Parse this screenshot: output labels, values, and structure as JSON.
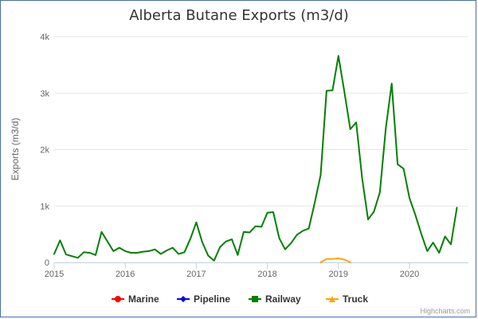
{
  "chart_data": {
    "type": "line",
    "title": "Alberta Butane Exports (m3/d)",
    "xlabel": "",
    "ylabel": "Exports (m3/d)",
    "xlim": [
      2015.0,
      2020.83
    ],
    "ylim": [
      0,
      4000
    ],
    "x_ticks": [
      2015,
      2016,
      2017,
      2018,
      2019,
      2020
    ],
    "x_tick_labels": [
      "2015",
      "2016",
      "2017",
      "2018",
      "2019",
      "2020"
    ],
    "y_ticks": [
      0,
      1000,
      2000,
      3000,
      4000
    ],
    "y_tick_labels": [
      "0",
      "1k",
      "2k",
      "3k",
      "4k"
    ],
    "grid": "horizontal",
    "legend_position": "bottom",
    "credits": "Highcharts.com",
    "series": [
      {
        "name": "Marine",
        "color": "#ff0000",
        "marker": "circle",
        "x": [],
        "values": []
      },
      {
        "name": "Pipeline",
        "color": "#0000ff",
        "marker": "diamond",
        "x": [],
        "values": []
      },
      {
        "name": "Railway",
        "color": "#008000",
        "marker": "square",
        "x": [
          2015.0,
          2015.083,
          2015.167,
          2015.25,
          2015.333,
          2015.417,
          2015.5,
          2015.583,
          2015.667,
          2015.75,
          2015.833,
          2015.917,
          2016.0,
          2016.083,
          2016.167,
          2016.25,
          2016.333,
          2016.417,
          2016.5,
          2016.583,
          2016.667,
          2016.75,
          2016.833,
          2016.917,
          2017.0,
          2017.083,
          2017.167,
          2017.25,
          2017.333,
          2017.417,
          2017.5,
          2017.583,
          2017.667,
          2017.75,
          2017.833,
          2017.917,
          2018.0,
          2018.083,
          2018.167,
          2018.25,
          2018.333,
          2018.417,
          2018.5,
          2018.583,
          2018.667,
          2018.75,
          2018.833,
          2018.917,
          2019.0,
          2019.083,
          2019.167,
          2019.25,
          2019.333,
          2019.417,
          2019.5,
          2019.583,
          2019.667,
          2019.75,
          2019.833,
          2019.917,
          2020.0,
          2020.083,
          2020.167,
          2020.25,
          2020.333,
          2020.417,
          2020.5,
          2020.583,
          2020.667
        ],
        "values": [
          150,
          390,
          140,
          110,
          80,
          180,
          170,
          130,
          540,
          370,
          200,
          260,
          200,
          170,
          170,
          190,
          200,
          230,
          150,
          210,
          260,
          150,
          180,
          420,
          710,
          360,
          120,
          30,
          270,
          370,
          410,
          130,
          540,
          530,
          640,
          630,
          880,
          890,
          430,
          230,
          340,
          490,
          560,
          600,
          1060,
          1550,
          3040,
          3050,
          3660,
          3030,
          2360,
          2480,
          1500,
          760,
          900,
          1240,
          2380,
          3170,
          1740,
          1660,
          1140,
          840,
          500,
          200,
          350,
          170,
          460,
          320,
          970
        ]
      },
      {
        "name": "Truck",
        "color": "#ffa500",
        "marker": "triangle",
        "x": [
          2018.75,
          2018.833,
          2018.917,
          2019.0,
          2019.083,
          2019.167
        ],
        "values": [
          0,
          60,
          60,
          70,
          50,
          0
        ]
      }
    ]
  }
}
